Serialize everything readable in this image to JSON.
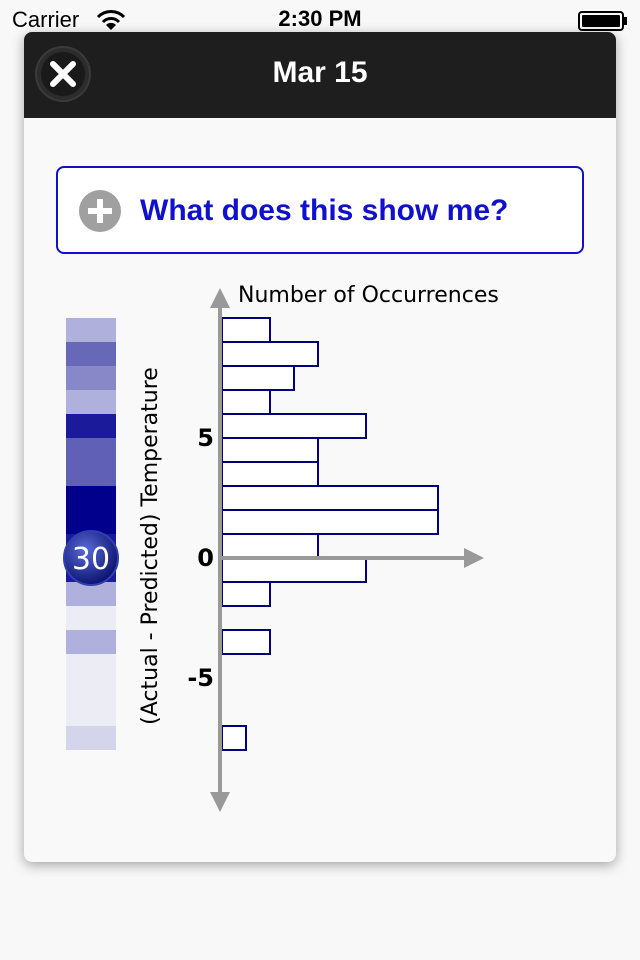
{
  "status_bar": {
    "carrier": "Carrier",
    "time": "2:30 PM"
  },
  "modal": {
    "title": "Mar 15",
    "help_label": "What does this show me?"
  },
  "colors": {
    "header_bg": "#1e1e1e",
    "link_blue": "#1010d0",
    "bar_outline": "#000080",
    "axis_gray": "#999999"
  },
  "chart_data": {
    "type": "bar",
    "orientation": "horizontal",
    "xlabel": "Number of Occurrences",
    "ylabel": "(Actual - Predicted) Temperature",
    "yticks": [
      "5",
      "0",
      "-5"
    ],
    "bins": [
      {
        "y": 9,
        "count": 2
      },
      {
        "y": 8,
        "count": 4
      },
      {
        "y": 7,
        "count": 3
      },
      {
        "y": 6,
        "count": 2
      },
      {
        "y": 5,
        "count": 6
      },
      {
        "y": 4,
        "count": 4
      },
      {
        "y": 3,
        "count": 4
      },
      {
        "y": 2,
        "count": 9
      },
      {
        "y": 1,
        "count": 9
      },
      {
        "y": 0,
        "count": 4
      },
      {
        "y": -1,
        "count": 6
      },
      {
        "y": -2,
        "count": 2
      },
      {
        "y": -3,
        "count": 0
      },
      {
        "y": -4,
        "count": 2
      },
      {
        "y": -5,
        "count": 0
      },
      {
        "y": -6,
        "count": 0
      },
      {
        "y": -7,
        "count": 0
      },
      {
        "y": -8,
        "count": 1
      }
    ],
    "color_strip": [
      {
        "y": 9,
        "color": "#b0b0dc"
      },
      {
        "y": 8,
        "color": "#6868b8"
      },
      {
        "y": 7,
        "color": "#8888c8"
      },
      {
        "y": 6,
        "color": "#b0b0dc"
      },
      {
        "y": 5,
        "color": "#1a1a9a"
      },
      {
        "y": 4,
        "color": "#6060b6"
      },
      {
        "y": 3,
        "color": "#6060b6"
      },
      {
        "y": 2,
        "color": "#00008c"
      },
      {
        "y": 1,
        "color": "#00008c"
      },
      {
        "y": 0,
        "color": "#1a1a9a"
      },
      {
        "y": -1,
        "color": "#1a1a9a"
      },
      {
        "y": -2,
        "color": "#b0b0dc"
      },
      {
        "y": -3,
        "color": "#ececf4"
      },
      {
        "y": -4,
        "color": "#b0b0dc"
      },
      {
        "y": -5,
        "color": "#ececf4"
      },
      {
        "y": -6,
        "color": "#ececf4"
      },
      {
        "y": -7,
        "color": "#ececf4"
      },
      {
        "y": -8,
        "color": "#d4d4ea"
      }
    ],
    "marker": {
      "y": 0,
      "label": "30"
    }
  }
}
